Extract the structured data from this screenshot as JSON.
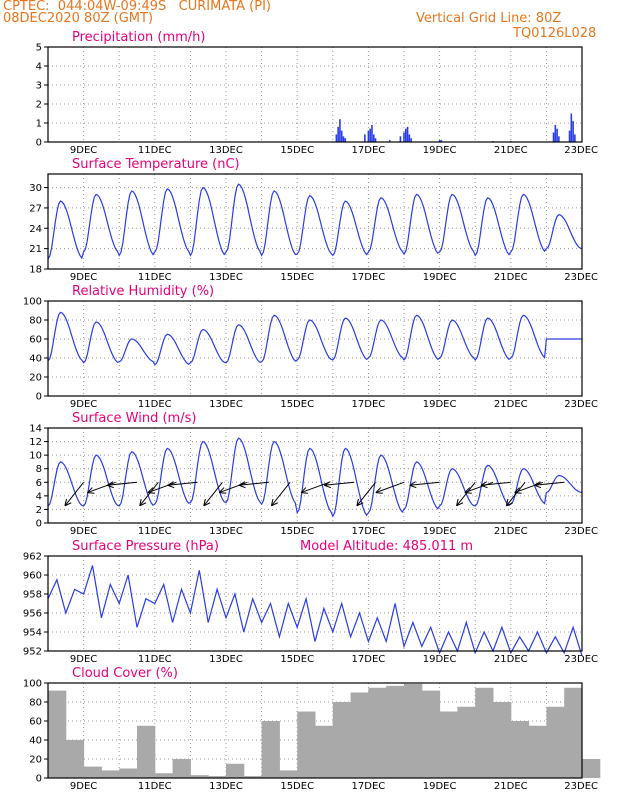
{
  "header": {
    "line1": "CPTEC:  044:04W-09:49S   CURIMATA (PI)",
    "line2": "08DEC2020 80Z (GMT)",
    "grid_note": "Vertical Grid Line: 80Z",
    "run_code": "TQ0126L028"
  },
  "colors": {
    "series": "#2a3ce6",
    "cloud": "#a9a9a9",
    "title": "#e8007a",
    "header": "#e8761e"
  },
  "chart_data": [
    {
      "type": "bar",
      "title": "Precipitation (mm/h)",
      "ylim": [
        0,
        5
      ],
      "yticks": [
        0,
        1,
        2,
        3,
        4,
        5
      ],
      "x_range_days": [
        8.0,
        23.0
      ],
      "x_tick_labels": [
        "9DEC",
        "11DEC",
        "13DEC",
        "15DEC",
        "17DEC",
        "19DEC",
        "21DEC",
        "23DEC"
      ],
      "series": [
        {
          "x": [
            16.1,
            16.15,
            16.2,
            16.25,
            16.3,
            16.35,
            16.9,
            17.0,
            17.05,
            17.1,
            17.15,
            17.2,
            17.6,
            17.9,
            18.0,
            18.05,
            18.1,
            18.15,
            18.2,
            19.0,
            19.05,
            20.5,
            21.0,
            22.2,
            22.25,
            22.3,
            22.35,
            22.65,
            22.7,
            22.75,
            22.8
          ],
          "values": [
            0.4,
            0.8,
            1.2,
            0.6,
            0.3,
            0.2,
            0.4,
            0.6,
            0.7,
            0.9,
            0.4,
            0.2,
            0.1,
            0.3,
            0.5,
            0.7,
            0.8,
            0.4,
            0.2,
            0.1,
            0.1,
            0.05,
            0.05,
            0.5,
            0.9,
            0.7,
            0.3,
            0.6,
            1.5,
            1.1,
            0.4
          ]
        }
      ]
    },
    {
      "type": "line",
      "title": "Surface Temperature (nC)",
      "ylim": [
        18,
        32
      ],
      "yticks": [
        18,
        21,
        24,
        27,
        30
      ],
      "x_range_days": [
        8.0,
        23.0
      ],
      "x_tick_labels": [
        "9DEC",
        "11DEC",
        "13DEC",
        "15DEC",
        "17DEC",
        "19DEC",
        "21DEC",
        "23DEC"
      ],
      "daily_max": [
        28.0,
        29.0,
        29.5,
        29.8,
        30.0,
        30.5,
        29.5,
        28.8,
        28.0,
        28.5,
        29.0,
        29.0,
        28.5,
        29.0,
        26.0
      ],
      "daily_min": [
        19.5,
        20.5,
        20.0,
        20.5,
        20.0,
        20.5,
        20.0,
        20.2,
        20.0,
        20.5,
        20.2,
        20.5,
        20.0,
        20.5,
        21.0
      ]
    },
    {
      "type": "line",
      "title": "Relative Humidity (%)",
      "ylim": [
        0,
        100
      ],
      "yticks": [
        0,
        20,
        40,
        60,
        80,
        100
      ],
      "x_range_days": [
        8.0,
        23.0
      ],
      "x_tick_labels": [
        "9DEC",
        "11DEC",
        "13DEC",
        "15DEC",
        "17DEC",
        "19DEC",
        "21DEC",
        "23DEC"
      ],
      "daily_max": [
        88.0,
        78.0,
        60.0,
        65.0,
        70.0,
        75.0,
        85.0,
        80.0,
        82.0,
        80.0,
        85.0,
        80.0,
        82.0,
        85.0,
        60.0
      ],
      "daily_min": [
        37.0,
        35.0,
        36.0,
        33.0,
        35.0,
        35.0,
        36.0,
        38.0,
        38.0,
        40.0,
        38.0,
        40.0,
        38.0,
        40.0,
        60.0
      ]
    },
    {
      "type": "line",
      "title": "Surface Wind (m/s)",
      "ylim": [
        0,
        14
      ],
      "yticks": [
        0,
        2,
        4,
        6,
        8,
        10,
        12,
        14
      ],
      "x_range_days": [
        8.0,
        23.0
      ],
      "x_tick_labels": [
        "9DEC",
        "11DEC",
        "13DEC",
        "15DEC",
        "17DEC",
        "19DEC",
        "21DEC",
        "23DEC"
      ],
      "daily_max": [
        9.0,
        10.0,
        10.5,
        11.0,
        12.0,
        12.5,
        12.0,
        11.0,
        11.0,
        10.0,
        9.0,
        8.0,
        8.5,
        8.0,
        7.0
      ],
      "daily_min": [
        2.5,
        2.5,
        2.5,
        2.8,
        3.0,
        3.0,
        2.8,
        1.5,
        1.0,
        1.5,
        2.0,
        2.5,
        2.5,
        2.8,
        4.5
      ],
      "arrows_days": [
        9.0,
        9.9,
        10.5,
        11.1,
        11.6,
        12.2,
        12.9,
        13.6,
        14.2,
        14.8,
        15.9,
        16.6,
        17.2,
        18.0,
        19.0,
        20.0,
        20.5,
        21.0,
        21.4,
        21.9,
        22.5
      ]
    },
    {
      "type": "line",
      "title": "Surface Pressure (hPa)",
      "annotation": "Model Altitude: 485.011 m",
      "ylim": [
        952,
        962
      ],
      "yticks": [
        952,
        954,
        956,
        958,
        960,
        962
      ],
      "x_range_days": [
        8.0,
        23.0
      ],
      "x_tick_labels": [
        "9DEC",
        "11DEC",
        "13DEC",
        "15DEC",
        "17DEC",
        "19DEC",
        "21DEC",
        "23DEC"
      ],
      "values_6h": [
        957.5,
        959.5,
        956.0,
        958.5,
        958.0,
        961.0,
        955.5,
        959.0,
        957.0,
        960.0,
        954.5,
        957.5,
        957.0,
        959.0,
        955.0,
        958.5,
        956.0,
        960.5,
        955.0,
        958.5,
        955.5,
        958.0,
        954.0,
        957.5,
        955.0,
        957.0,
        953.5,
        957.0,
        954.5,
        957.5,
        953.0,
        956.5,
        954.0,
        957.0,
        953.5,
        956.0,
        953.0,
        955.5,
        953.0,
        957.0,
        952.5,
        955.0,
        952.5,
        954.5,
        951.8,
        954.0,
        952.0,
        955.0,
        951.8,
        954.0,
        952.0,
        954.5,
        951.8,
        953.5,
        952.0,
        954.0,
        951.8,
        953.5,
        951.8,
        954.5,
        951.5
      ]
    },
    {
      "type": "bar",
      "title": "Cloud Cover (%)",
      "ylim": [
        0,
        100
      ],
      "yticks": [
        0,
        20,
        40,
        60,
        80,
        100
      ],
      "x_range_days": [
        8.0,
        23.0
      ],
      "x_tick_labels": [
        "9DEC",
        "11DEC",
        "13DEC",
        "15DEC",
        "17DEC",
        "19DEC",
        "21DEC",
        "23DEC"
      ],
      "series": [
        {
          "x": [
            8.0,
            8.5,
            9.0,
            9.5,
            10.0,
            10.5,
            11.0,
            11.5,
            12.0,
            12.5,
            13.0,
            13.5,
            14.0,
            14.5,
            15.0,
            15.5,
            16.0,
            16.5,
            17.0,
            17.5,
            18.0,
            18.5,
            19.0,
            19.5,
            20.0,
            20.5,
            21.0,
            21.5,
            22.0,
            22.5,
            23.0
          ],
          "values": [
            92,
            40,
            12,
            8,
            10,
            55,
            5,
            20,
            3,
            2,
            15,
            2,
            60,
            8,
            70,
            55,
            80,
            90,
            95,
            97,
            99,
            92,
            70,
            75,
            95,
            80,
            60,
            55,
            75,
            95,
            20
          ]
        }
      ]
    }
  ]
}
